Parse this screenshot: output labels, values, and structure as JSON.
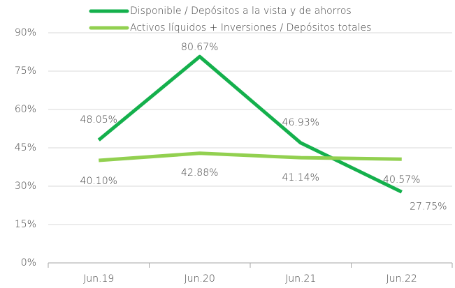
{
  "chart_data": {
    "type": "line",
    "categories": [
      "Jun.19",
      "Jun.20",
      "Jun.21",
      "Jun.22"
    ],
    "series": [
      {
        "name": "Disponible / Depósitos a la vista y de ahorros",
        "color": "#14b04c",
        "values": [
          48.05,
          80.67,
          46.93,
          27.75
        ],
        "value_labels": [
          "48.05%",
          "80.67%",
          "46.93%",
          "27.75%"
        ]
      },
      {
        "name": "Activos líquidos + Inversiones / Depósitos totales",
        "color": "#92d050",
        "values": [
          40.1,
          42.88,
          41.14,
          40.57
        ],
        "value_labels": [
          "40.10%",
          "42.88%",
          "41.14%",
          "40.57%"
        ]
      }
    ],
    "ylim": [
      0,
      90
    ],
    "yticks": [
      {
        "value": 0,
        "label": "0%"
      },
      {
        "value": 15,
        "label": "15%"
      },
      {
        "value": 30,
        "label": "30%"
      },
      {
        "value": 45,
        "label": "45%"
      },
      {
        "value": 60,
        "label": "60%"
      },
      {
        "value": 75,
        "label": "75%"
      },
      {
        "value": 90,
        "label": "90%"
      }
    ],
    "grid": true
  }
}
